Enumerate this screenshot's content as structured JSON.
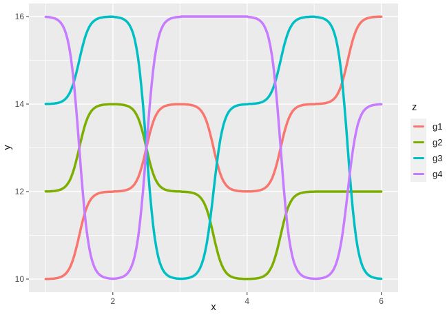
{
  "chart_data": {
    "type": "line",
    "title": "",
    "xlabel": "x",
    "ylabel": "y",
    "x": [
      1,
      2,
      3,
      4,
      5,
      6
    ],
    "series": [
      {
        "name": "g1",
        "color": "#F8766D",
        "values": [
          10,
          12,
          14,
          12,
          14,
          16
        ]
      },
      {
        "name": "g2",
        "color": "#7CAE00",
        "values": [
          12,
          14,
          12,
          10,
          12,
          12
        ]
      },
      {
        "name": "g3",
        "color": "#00BFC4",
        "values": [
          14,
          16,
          10,
          14,
          16,
          10
        ]
      },
      {
        "name": "g4",
        "color": "#C77CFF",
        "values": [
          16,
          10,
          16,
          16,
          10,
          14
        ]
      }
    ],
    "interpolation": "sigmoid-step",
    "x_ticks": {
      "values": [
        2,
        4,
        6
      ],
      "labels": [
        "2",
        "4",
        "6"
      ]
    },
    "y_ticks": {
      "values": [
        10,
        12,
        14,
        16
      ],
      "labels": [
        "10",
        "12",
        "14",
        "16"
      ]
    },
    "x_minor": [
      1,
      3,
      5
    ],
    "y_minor": [
      11,
      13,
      15
    ],
    "xlim": [
      0.75,
      6.25
    ],
    "ylim": [
      9.7,
      16.3
    ],
    "grid": true,
    "legend": {
      "title": "z",
      "position": "right",
      "entries": [
        "g1",
        "g2",
        "g3",
        "g4"
      ]
    },
    "style": {
      "panel_bg": "#EBEBEB",
      "grid_color": "#FFFFFF",
      "tick_color": "#333333",
      "tick_label_color": "#4d4d4d",
      "legend_key_bg": "#F0F0F0",
      "line_width": 3.5
    }
  }
}
